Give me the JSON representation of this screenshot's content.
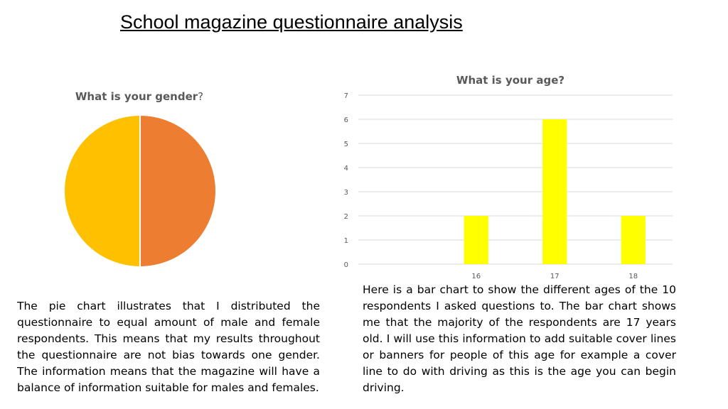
{
  "page_title": "School magazine questionnaire analysis",
  "colors": {
    "slice_a": "#ED7D31",
    "slice_b": "#FFC000",
    "bar": "#FFFF00",
    "gridline": "#D9D9D9",
    "axis_text": "#595959"
  },
  "chart_data": [
    {
      "type": "pie",
      "title_main": "What is your gender",
      "title_mark": "?",
      "slices": [
        {
          "value": 50,
          "color": "#ED7D31"
        },
        {
          "value": 50,
          "color": "#FFC000"
        }
      ],
      "legend": "none"
    },
    {
      "type": "bar",
      "title": "What is your age?",
      "categories": [
        "",
        "16",
        "17",
        "18"
      ],
      "values": [
        0,
        2,
        6,
        2
      ],
      "ylim": [
        0,
        7
      ],
      "yticks": [
        "0",
        "1",
        "2",
        "3",
        "4",
        "5",
        "6",
        "7"
      ],
      "grid": true,
      "legend": "none"
    }
  ],
  "captions": {
    "left": "The pie chart illustrates that I distributed the questionnaire to equal amount of male and female respondents. This means that my results throughout the questionnaire are not bias towards one gender. The information means that the magazine will have a balance of information suitable for males and females.",
    "right": "Here is a bar chart to show the different ages of the 10 respondents I asked questions to. The bar chart shows me that the majority of the respondents are 17 years old. I will use this information to add suitable cover lines or banners for people of this age for example a cover line to do with driving as this is the age you can begin driving."
  }
}
